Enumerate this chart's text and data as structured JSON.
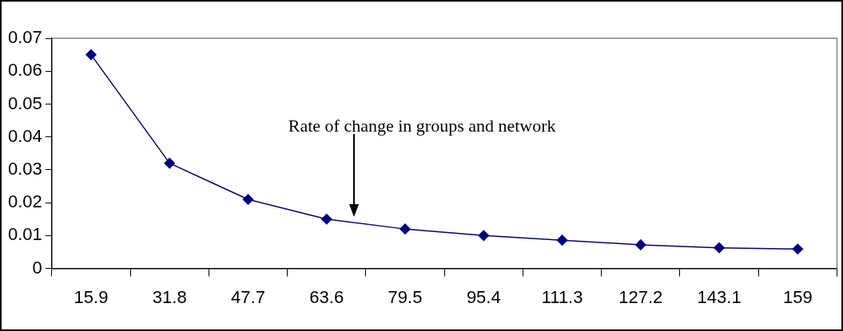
{
  "chart_data": {
    "type": "line",
    "categories": [
      "15.9",
      "31.8",
      "47.7",
      "63.6",
      "79.5",
      "95.4",
      "111.3",
      "127.2",
      "143.1",
      "159"
    ],
    "series": [
      {
        "color": "#000080",
        "values": [
          0.065,
          0.032,
          0.021,
          0.015,
          0.012,
          0.01,
          0.0086,
          0.0072,
          0.0063,
          0.0059
        ]
      }
    ],
    "ylim": [
      0,
      0.07
    ],
    "yticks": [
      0,
      0.01,
      0.02,
      0.03,
      0.04,
      0.05,
      0.06,
      0.07
    ],
    "marker": "diamond",
    "line_style": "solid",
    "grid": false,
    "legend": false,
    "annotations": [
      "Rate of change in groups and network"
    ]
  }
}
